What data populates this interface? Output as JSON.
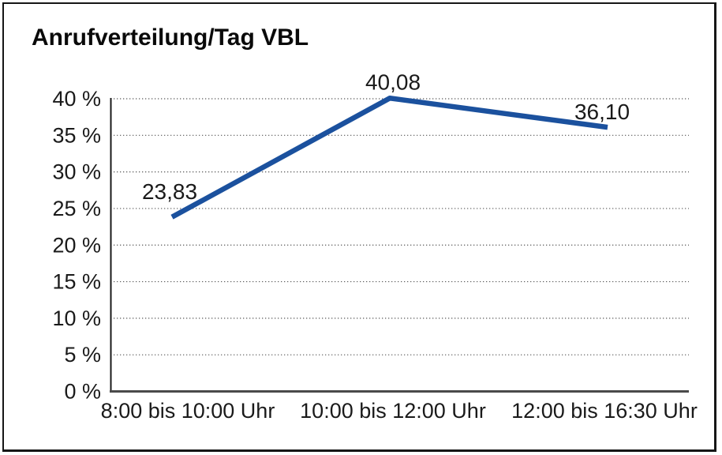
{
  "title": "Anrufverteilung/Tag VBL",
  "colors": {
    "line": "#1B519E",
    "grid": "#595959",
    "y_axis": "#1a1a1a",
    "x_axis": "#4a4a4a",
    "text": "#1a1a1a",
    "border": "#161616",
    "background": "#ffffff"
  },
  "chart_data": {
    "type": "line",
    "title": "Anrufverteilung/Tag VBL",
    "categories": [
      "8:00 bis 10:00 Uhr",
      "10:00 bis 12:00 Uhr",
      "12:00 bis 16:30 Uhr"
    ],
    "values": [
      23.83,
      40.08,
      36.1
    ],
    "point_labels": [
      "23,83",
      "40,08",
      "36,10"
    ],
    "yticks": [
      0,
      5,
      10,
      15,
      20,
      25,
      30,
      35,
      40
    ],
    "ytick_labels": [
      "0 %",
      "5 %",
      "10 %",
      "15 %",
      "20 %",
      "25 %",
      "30 %",
      "35 %",
      "40 %"
    ],
    "ylim": [
      0,
      40
    ],
    "xlabel": "",
    "ylabel": "",
    "grid": "horizontal-dotted",
    "legend": "none",
    "line_color": "#1B519E"
  }
}
